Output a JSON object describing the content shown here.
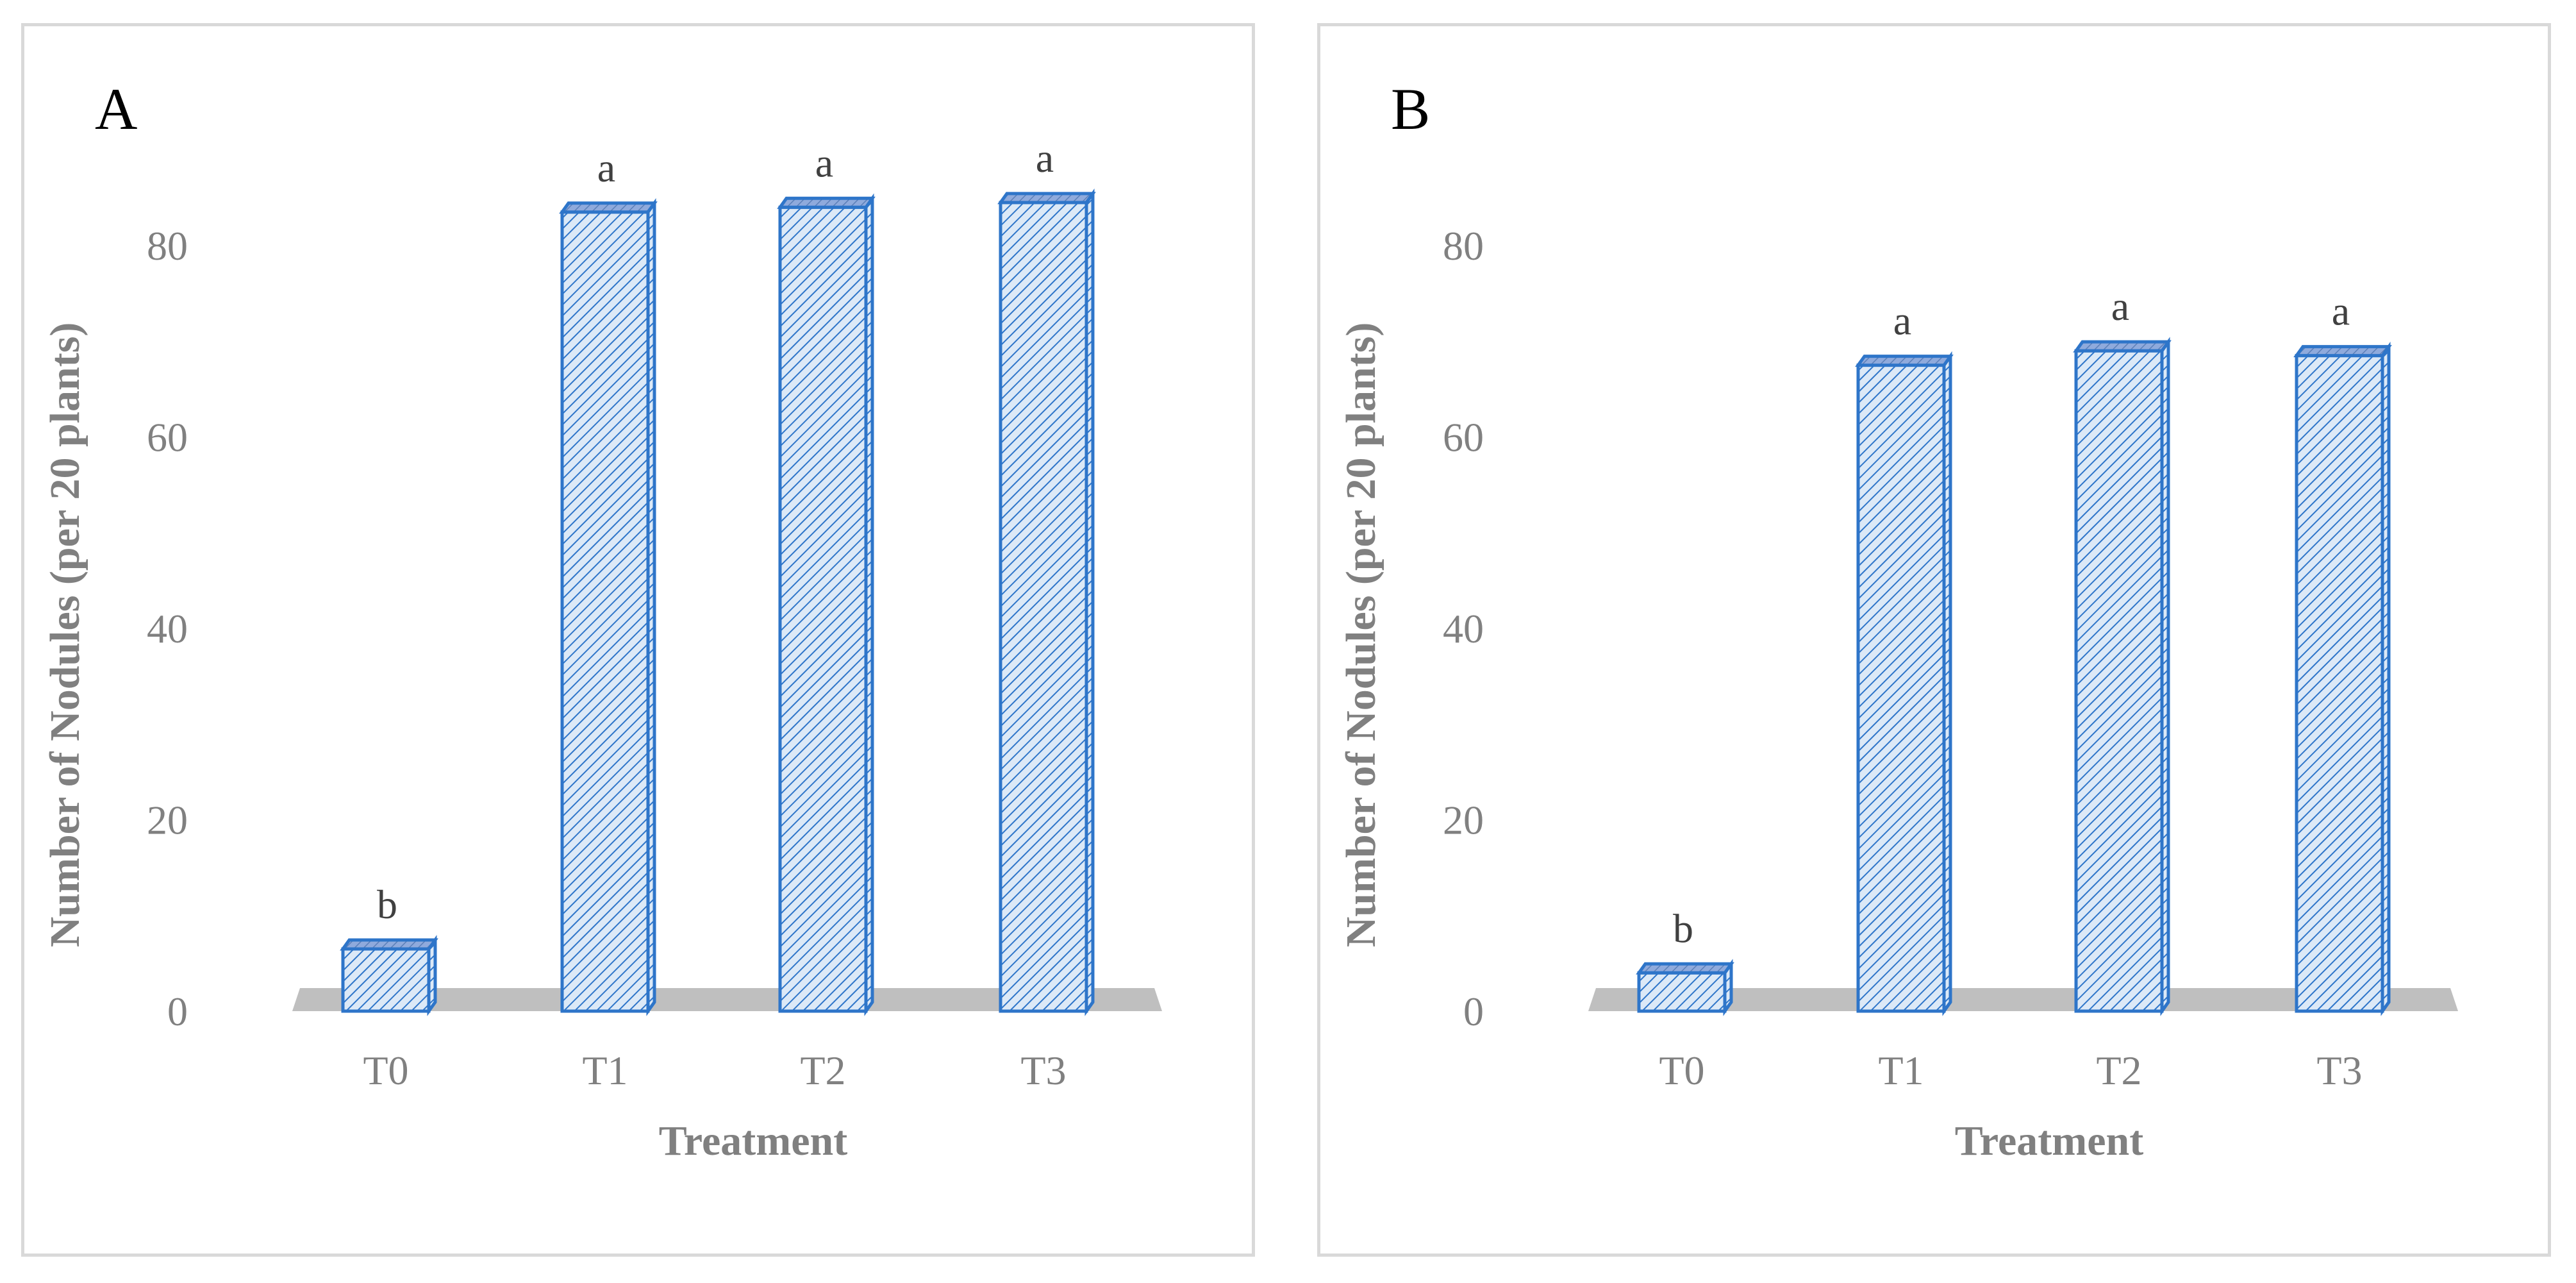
{
  "colors": {
    "bar_fill": "#dce9f7",
    "bar_stroke": "#2e75c9",
    "hatch": "#2e75c9",
    "bar_top": "#8faadc",
    "floor": "#bfbfbf",
    "text": "#808080",
    "border": "#d9d9d9"
  },
  "chart_data": [
    {
      "panel": "A",
      "type": "bar",
      "style": "3d-column-hatched",
      "categories": [
        "T0",
        "T1",
        "T2",
        "T3"
      ],
      "values": [
        6.5,
        83.5,
        84,
        84.5
      ],
      "significance": [
        "b",
        "a",
        "a",
        "a"
      ],
      "xlabel": "Treatment",
      "ylabel": "Number of Nodules (per 20 plants)",
      "ylim": [
        0,
        85
      ],
      "yticks": [
        "0",
        "20",
        "40",
        "60",
        "80"
      ],
      "grid": false
    },
    {
      "panel": "B",
      "type": "bar",
      "style": "3d-column-hatched",
      "categories": [
        "T0",
        "T1",
        "T2",
        "T3"
      ],
      "values": [
        4,
        67.5,
        69,
        68.5
      ],
      "significance": [
        "b",
        "a",
        "a",
        "a"
      ],
      "xlabel": "Treatment",
      "ylabel": "Number of Nodules (per 20 plants)",
      "ylim": [
        0,
        85
      ],
      "yticks": [
        "0",
        "20",
        "40",
        "60",
        "80"
      ],
      "grid": false
    }
  ]
}
